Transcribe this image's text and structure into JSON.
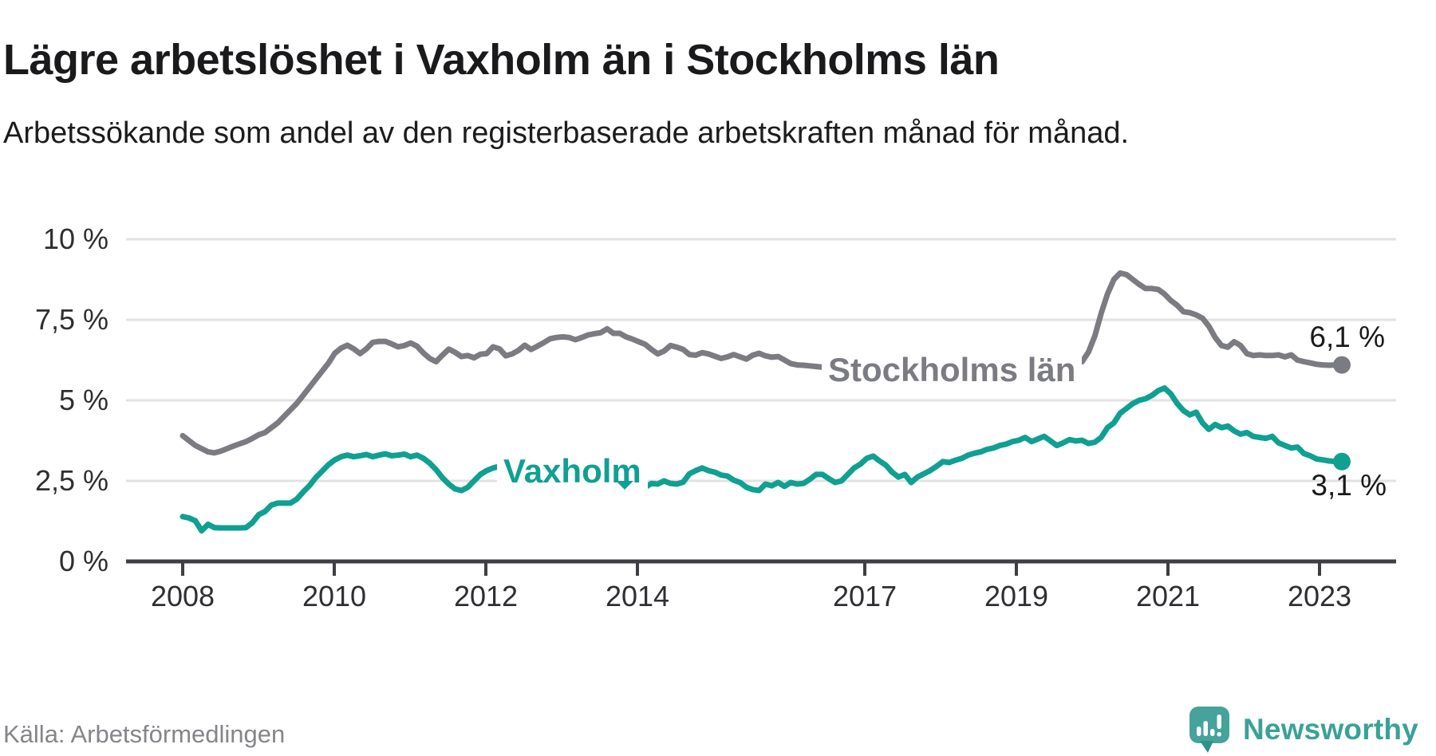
{
  "header": {
    "title": "Lägre arbetslöshet i Vaxholm än i Stockholms län",
    "subtitle": "Arbetssökande som andel av den registerbaserade arbetskraften månad för månad."
  },
  "chart_data": {
    "type": "line",
    "title": "Lägre arbetslöshet i Vaxholm än i Stockholms län",
    "unit": "%",
    "grid": true,
    "legend_position": "inline-labels-on-lines",
    "ylim": [
      0,
      10
    ],
    "y_ticks": [
      {
        "label": "10 %",
        "value": 10
      },
      {
        "label": "7,5 %",
        "value": 7.5
      },
      {
        "label": "5 %",
        "value": 5
      },
      {
        "label": "2,5 %",
        "value": 2.5
      },
      {
        "label": "0 %",
        "value": 0
      }
    ],
    "x_ticks": [
      {
        "label": "2008",
        "year": 2008
      },
      {
        "label": "2010",
        "year": 2010
      },
      {
        "label": "2012",
        "year": 2012
      },
      {
        "label": "2014",
        "year": 2014
      },
      {
        "label": "2017",
        "year": 2017
      },
      {
        "label": "2019",
        "year": 2019
      },
      {
        "label": "2021",
        "year": 2021
      },
      {
        "label": "2023",
        "year": 2023
      }
    ],
    "x_start": "2008-01",
    "x_frequency": "monthly",
    "series": [
      {
        "name": "Stockholms län",
        "color": "#7b7b82",
        "end_label": "6,1 %",
        "end_value": 6.1,
        "values": [
          3.9,
          3.75,
          3.6,
          3.5,
          3.4,
          3.37,
          3.42,
          3.5,
          3.58,
          3.65,
          3.72,
          3.82,
          3.93,
          4.0,
          4.15,
          4.3,
          4.5,
          4.7,
          4.9,
          5.15,
          5.4,
          5.65,
          5.9,
          6.15,
          6.46,
          6.62,
          6.71,
          6.6,
          6.45,
          6.6,
          6.8,
          6.83,
          6.83,
          6.75,
          6.66,
          6.7,
          6.78,
          6.68,
          6.47,
          6.3,
          6.2,
          6.4,
          6.59,
          6.49,
          6.36,
          6.39,
          6.32,
          6.43,
          6.45,
          6.66,
          6.6,
          6.38,
          6.44,
          6.55,
          6.71,
          6.58,
          6.68,
          6.79,
          6.91,
          6.95,
          6.97,
          6.95,
          6.88,
          6.95,
          7.03,
          7.07,
          7.1,
          7.22,
          7.08,
          7.08,
          6.97,
          6.9,
          6.82,
          6.74,
          6.58,
          6.44,
          6.53,
          6.7,
          6.65,
          6.58,
          6.42,
          6.4,
          6.48,
          6.44,
          6.37,
          6.3,
          6.35,
          6.42,
          6.35,
          6.28,
          6.4,
          6.46,
          6.38,
          6.34,
          6.36,
          6.25,
          6.14,
          6.1,
          6.09,
          6.07,
          6.05,
          6.03,
          6.0,
          5.98,
          5.97,
          5.96,
          5.95,
          5.95,
          5.96,
          5.97,
          5.98,
          5.97,
          5.96,
          5.95,
          5.95,
          5.96,
          5.97,
          5.98,
          5.97,
          5.96,
          5.95,
          5.96,
          5.97,
          5.98,
          5.99,
          6.0,
          6.0,
          6.0,
          6.0,
          6.0,
          6.0,
          6.0,
          6.0,
          6.0,
          6.0,
          6.0,
          6.0,
          6.0,
          6.0,
          6.05,
          6.1,
          6.15,
          6.2,
          6.5,
          7.0,
          7.7,
          8.3,
          8.75,
          8.95,
          8.9,
          8.75,
          8.6,
          8.47,
          8.47,
          8.44,
          8.3,
          8.1,
          7.95,
          7.75,
          7.72,
          7.65,
          7.55,
          7.3,
          6.95,
          6.7,
          6.65,
          6.82,
          6.7,
          6.45,
          6.39,
          6.41,
          6.39,
          6.39,
          6.41,
          6.35,
          6.41,
          6.25,
          6.2,
          6.16,
          6.12,
          6.1,
          6.09,
          6.1,
          6.1
        ]
      },
      {
        "name": "Vaxholm",
        "color": "#10A092",
        "end_label": "3,1 %",
        "end_value": 3.1,
        "values": [
          1.39,
          1.35,
          1.26,
          0.95,
          1.15,
          1.05,
          1.04,
          1.04,
          1.04,
          1.04,
          1.05,
          1.2,
          1.45,
          1.55,
          1.75,
          1.81,
          1.81,
          1.81,
          1.93,
          2.15,
          2.35,
          2.6,
          2.8,
          3.0,
          3.15,
          3.25,
          3.3,
          3.25,
          3.28,
          3.32,
          3.25,
          3.3,
          3.34,
          3.28,
          3.3,
          3.33,
          3.25,
          3.3,
          3.2,
          3.05,
          2.85,
          2.6,
          2.4,
          2.25,
          2.2,
          2.3,
          2.5,
          2.7,
          2.82,
          2.9,
          2.95,
          3.0,
          3.05,
          3.02,
          2.98,
          2.95,
          2.92,
          2.9,
          2.88,
          2.86,
          2.85,
          2.8,
          2.75,
          2.7,
          2.65,
          2.6,
          2.55,
          2.5,
          2.45,
          2.42,
          2.4,
          2.38,
          2.35,
          2.3,
          2.42,
          2.4,
          2.5,
          2.42,
          2.4,
          2.46,
          2.72,
          2.82,
          2.9,
          2.82,
          2.77,
          2.68,
          2.65,
          2.52,
          2.45,
          2.3,
          2.23,
          2.2,
          2.4,
          2.35,
          2.45,
          2.33,
          2.45,
          2.4,
          2.42,
          2.55,
          2.7,
          2.7,
          2.57,
          2.45,
          2.5,
          2.7,
          2.9,
          3.02,
          3.2,
          3.27,
          3.12,
          2.99,
          2.77,
          2.62,
          2.7,
          2.45,
          2.62,
          2.72,
          2.82,
          2.95,
          3.1,
          3.07,
          3.14,
          3.2,
          3.3,
          3.36,
          3.4,
          3.48,
          3.52,
          3.6,
          3.64,
          3.72,
          3.76,
          3.85,
          3.72,
          3.8,
          3.88,
          3.74,
          3.6,
          3.68,
          3.78,
          3.74,
          3.76,
          3.66,
          3.7,
          3.85,
          4.15,
          4.3,
          4.6,
          4.75,
          4.9,
          5.0,
          5.05,
          5.15,
          5.3,
          5.38,
          5.2,
          4.9,
          4.68,
          4.55,
          4.63,
          4.3,
          4.1,
          4.25,
          4.15,
          4.2,
          4.05,
          3.95,
          4.0,
          3.88,
          3.85,
          3.82,
          3.88,
          3.68,
          3.6,
          3.52,
          3.55,
          3.35,
          3.28,
          3.18,
          3.15,
          3.12,
          3.1,
          3.1
        ]
      }
    ],
    "colors": {
      "grid": "#e2e2e2",
      "axis": "#3f3f43",
      "stockholm_line": "#7b7b82",
      "vaxholm_line": "#10A092"
    }
  },
  "footer": {
    "source": "Källa: Arbetsförmedlingen",
    "brand": "Newsworthy"
  }
}
